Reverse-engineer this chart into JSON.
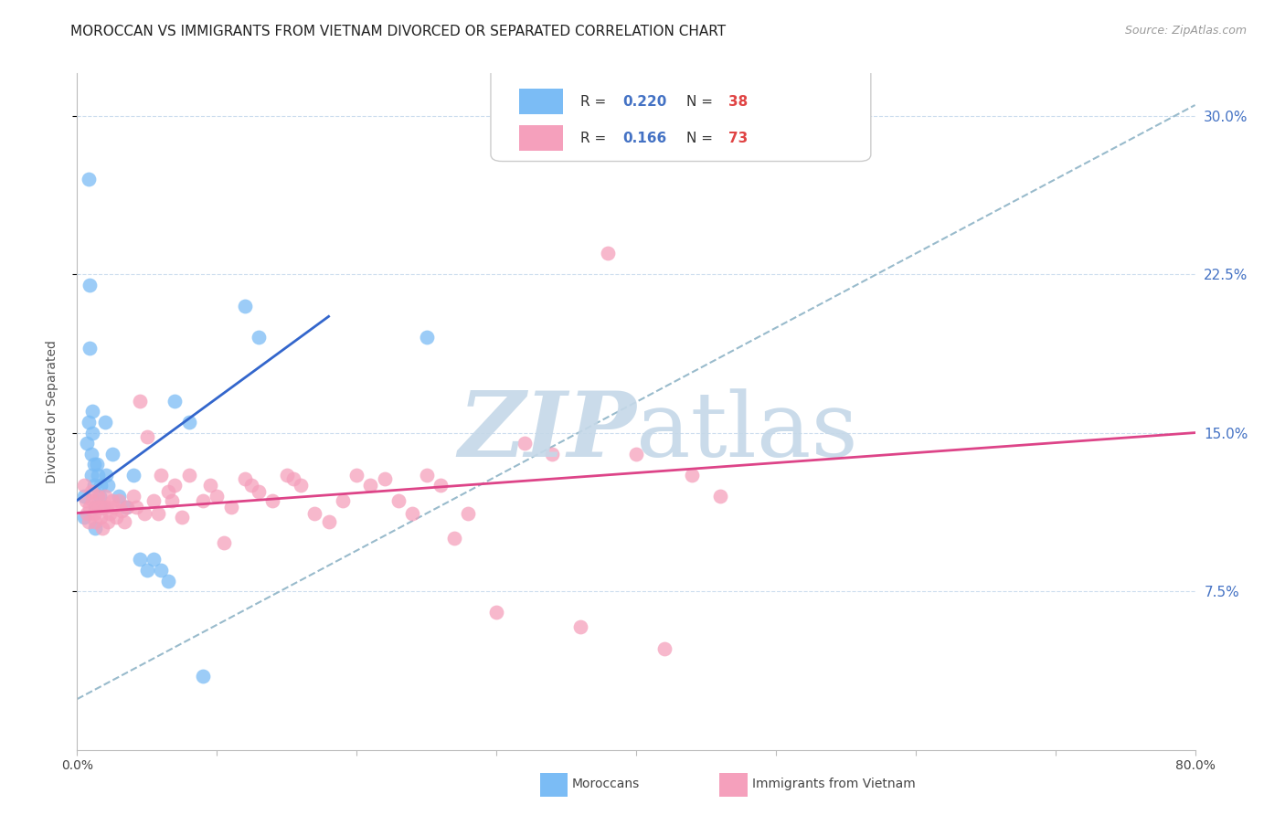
{
  "title": "MOROCCAN VS IMMIGRANTS FROM VIETNAM DIVORCED OR SEPARATED CORRELATION CHART",
  "source": "Source: ZipAtlas.com",
  "ylabel": "Divorced or Separated",
  "ytick_labels": [
    "7.5%",
    "15.0%",
    "22.5%",
    "30.0%"
  ],
  "ytick_values": [
    0.075,
    0.15,
    0.225,
    0.3
  ],
  "xmin": 0.0,
  "xmax": 0.8,
  "ymin": 0.0,
  "ymax": 0.32,
  "blue_color": "#7bbcf5",
  "pink_color": "#f5a0bc",
  "blue_line_color": "#3366cc",
  "pink_line_color": "#dd4488",
  "dashed_line_color": "#99bbcc",
  "grid_color": "#ccddee",
  "blue_scatter_x": [
    0.005,
    0.005,
    0.007,
    0.008,
    0.008,
    0.009,
    0.009,
    0.01,
    0.01,
    0.011,
    0.011,
    0.012,
    0.012,
    0.013,
    0.013,
    0.014,
    0.015,
    0.016,
    0.017,
    0.018,
    0.02,
    0.021,
    0.022,
    0.025,
    0.03,
    0.035,
    0.04,
    0.045,
    0.05,
    0.055,
    0.06,
    0.065,
    0.07,
    0.08,
    0.09,
    0.12,
    0.13,
    0.25
  ],
  "blue_scatter_y": [
    0.12,
    0.11,
    0.145,
    0.27,
    0.155,
    0.19,
    0.22,
    0.13,
    0.14,
    0.15,
    0.16,
    0.135,
    0.125,
    0.115,
    0.105,
    0.135,
    0.13,
    0.12,
    0.125,
    0.115,
    0.155,
    0.13,
    0.125,
    0.14,
    0.12,
    0.115,
    0.13,
    0.09,
    0.085,
    0.09,
    0.085,
    0.08,
    0.165,
    0.155,
    0.035,
    0.21,
    0.195,
    0.195
  ],
  "pink_scatter_x": [
    0.005,
    0.006,
    0.007,
    0.008,
    0.009,
    0.01,
    0.011,
    0.012,
    0.013,
    0.014,
    0.015,
    0.016,
    0.017,
    0.018,
    0.019,
    0.02,
    0.021,
    0.022,
    0.023,
    0.025,
    0.026,
    0.028,
    0.03,
    0.032,
    0.034,
    0.036,
    0.04,
    0.042,
    0.045,
    0.048,
    0.05,
    0.055,
    0.058,
    0.06,
    0.065,
    0.068,
    0.07,
    0.075,
    0.08,
    0.09,
    0.095,
    0.1,
    0.105,
    0.11,
    0.12,
    0.125,
    0.13,
    0.14,
    0.15,
    0.155,
    0.16,
    0.17,
    0.18,
    0.19,
    0.2,
    0.21,
    0.22,
    0.23,
    0.24,
    0.25,
    0.26,
    0.27,
    0.28,
    0.3,
    0.32,
    0.34,
    0.36,
    0.38,
    0.4,
    0.42,
    0.44,
    0.46
  ],
  "pink_scatter_y": [
    0.125,
    0.118,
    0.112,
    0.108,
    0.115,
    0.122,
    0.118,
    0.112,
    0.108,
    0.115,
    0.12,
    0.115,
    0.11,
    0.105,
    0.115,
    0.12,
    0.115,
    0.108,
    0.112,
    0.118,
    0.115,
    0.11,
    0.118,
    0.113,
    0.108,
    0.115,
    0.12,
    0.115,
    0.165,
    0.112,
    0.148,
    0.118,
    0.112,
    0.13,
    0.122,
    0.118,
    0.125,
    0.11,
    0.13,
    0.118,
    0.125,
    0.12,
    0.098,
    0.115,
    0.128,
    0.125,
    0.122,
    0.118,
    0.13,
    0.128,
    0.125,
    0.112,
    0.108,
    0.118,
    0.13,
    0.125,
    0.128,
    0.118,
    0.112,
    0.13,
    0.125,
    0.1,
    0.112,
    0.065,
    0.145,
    0.14,
    0.058,
    0.235,
    0.14,
    0.048,
    0.13,
    0.12
  ],
  "blue_line_x": [
    0.0,
    0.18
  ],
  "blue_line_y": [
    0.118,
    0.205
  ],
  "pink_line_x": [
    0.0,
    0.8
  ],
  "pink_line_y": [
    0.112,
    0.15
  ],
  "dashed_line_x": [
    0.0,
    0.8
  ],
  "dashed_line_y": [
    0.024,
    0.305
  ],
  "title_fontsize": 11,
  "axis_label_fontsize": 10,
  "tick_fontsize": 10,
  "source_fontsize": 9
}
